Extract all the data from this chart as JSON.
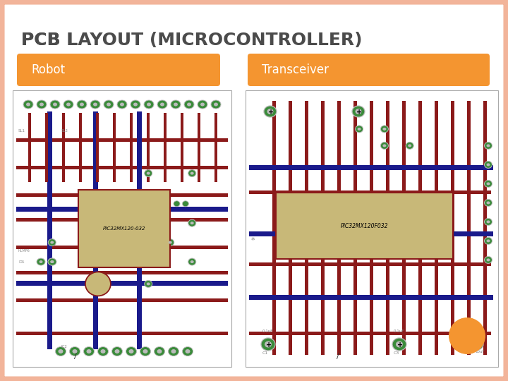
{
  "title": "PCB Láyout (Microcontroller)",
  "background_color": "#FFFFFF",
  "border_color": "#F2B49A",
  "label_robot": "Robot",
  "label_transceiver": "Transceiver",
  "orange_box_color": "#F49530",
  "label_text_color": "#FFFFFF",
  "label_font_size": 12,
  "title_font_size": 18,
  "title_color": "#4B4B4B",
  "orange_circle_color": "#F49530",
  "dark_red": "#8B1A1A",
  "blue": "#1A1A8B",
  "green_pad": "#3A8B3A",
  "gray_pad": "#BBBBBB",
  "white": "#FFFFFF",
  "pcb_bg": "#FFFFFF",
  "pcb_border": "#AAAAAA"
}
